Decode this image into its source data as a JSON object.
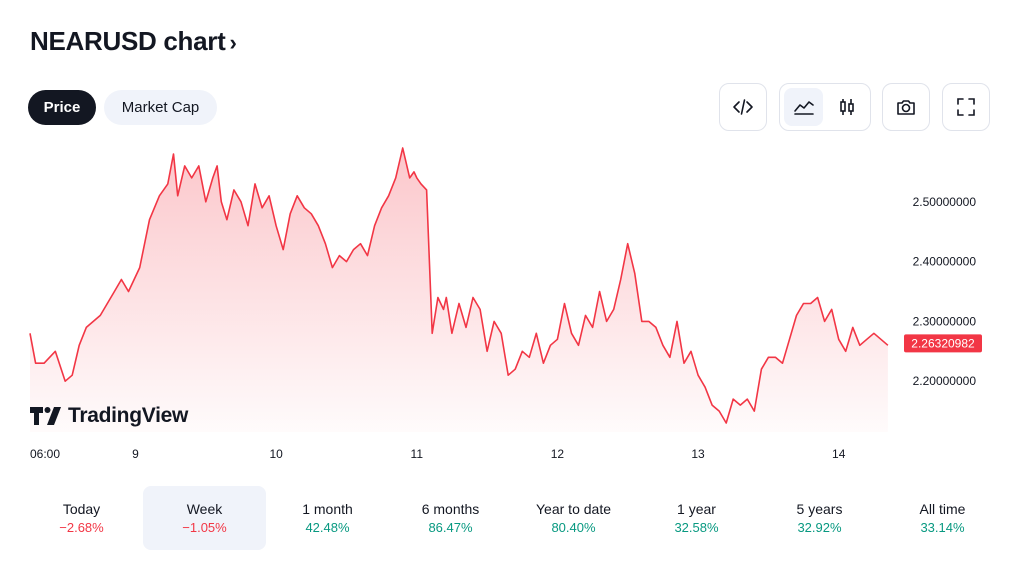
{
  "title": "NEARUSD chart",
  "tabs": [
    {
      "label": "Price",
      "active": true
    },
    {
      "label": "Market Cap",
      "active": false
    }
  ],
  "toolbar": {
    "icons": [
      "embed-code-icon",
      "area-chart-icon",
      "candlestick-icon",
      "camera-icon",
      "fullscreen-icon"
    ],
    "active": "area-chart-icon"
  },
  "branding": {
    "wordmark": "TradingView"
  },
  "colors": {
    "line": "#f23645",
    "positive": "#089981",
    "negative": "#f23645",
    "dark": "#131722",
    "selected_bg": "#f0f3fa"
  },
  "chart_data": {
    "type": "area",
    "symbol": "NEARUSD",
    "current_price": 2.26320982,
    "current_price_label": "2.26320982",
    "ylim": [
      2.115,
      2.59
    ],
    "yticks": [
      {
        "value": 2.5,
        "label": "2.50000000"
      },
      {
        "value": 2.4,
        "label": "2.40000000"
      },
      {
        "value": 2.3,
        "label": "2.30000000"
      },
      {
        "value": 2.2,
        "label": "2.20000000"
      }
    ],
    "xlim": [
      0,
      6.2
    ],
    "xticks": [
      {
        "value": 0,
        "label": "06:00"
      },
      {
        "value": 0.75,
        "label": "9"
      },
      {
        "value": 1.75,
        "label": "10"
      },
      {
        "value": 2.75,
        "label": "11"
      },
      {
        "value": 3.75,
        "label": "12"
      },
      {
        "value": 4.75,
        "label": "13"
      },
      {
        "value": 5.75,
        "label": "14"
      }
    ],
    "series": [
      {
        "x": [
          0.0,
          0.04,
          0.1,
          0.18,
          0.25,
          0.3,
          0.35,
          0.4,
          0.5,
          0.6,
          0.65,
          0.7,
          0.78,
          0.85,
          0.92,
          0.98,
          1.02,
          1.05,
          1.1,
          1.15,
          1.2,
          1.25,
          1.3,
          1.33,
          1.36,
          1.4,
          1.45,
          1.5,
          1.55,
          1.6,
          1.65,
          1.7,
          1.75,
          1.8,
          1.85,
          1.9,
          1.95,
          2.0,
          2.05,
          2.1,
          2.15,
          2.2,
          2.25,
          2.3,
          2.35,
          2.4,
          2.45,
          2.5,
          2.55,
          2.6,
          2.65,
          2.7,
          2.73,
          2.75,
          2.78,
          2.82,
          2.86,
          2.9,
          2.94,
          2.96,
          3.0,
          3.05,
          3.1,
          3.15,
          3.2,
          3.25,
          3.3,
          3.35,
          3.4,
          3.45,
          3.5,
          3.55,
          3.6,
          3.65,
          3.7,
          3.75,
          3.8,
          3.85,
          3.9,
          3.95,
          4.0,
          4.05,
          4.1,
          4.15,
          4.2,
          4.25,
          4.3,
          4.35,
          4.4,
          4.45,
          4.5,
          4.55,
          4.6,
          4.65,
          4.7,
          4.75,
          4.8,
          4.85,
          4.9,
          4.95,
          5.0,
          5.05,
          5.1,
          5.15,
          5.2,
          5.25,
          5.3,
          5.35,
          5.4,
          5.45,
          5.5,
          5.55,
          5.6,
          5.65,
          5.7,
          5.75,
          5.8,
          5.85,
          5.9,
          5.95,
          6.0,
          6.05,
          6.1
        ],
        "values": [
          2.28,
          2.23,
          2.23,
          2.25,
          2.2,
          2.21,
          2.26,
          2.29,
          2.31,
          2.35,
          2.37,
          2.35,
          2.39,
          2.47,
          2.51,
          2.53,
          2.58,
          2.51,
          2.56,
          2.54,
          2.56,
          2.5,
          2.54,
          2.56,
          2.5,
          2.47,
          2.52,
          2.5,
          2.46,
          2.53,
          2.49,
          2.51,
          2.46,
          2.42,
          2.48,
          2.51,
          2.49,
          2.48,
          2.46,
          2.43,
          2.39,
          2.41,
          2.4,
          2.42,
          2.43,
          2.41,
          2.46,
          2.49,
          2.51,
          2.54,
          2.59,
          2.54,
          2.55,
          2.54,
          2.53,
          2.52,
          2.28,
          2.34,
          2.32,
          2.34,
          2.28,
          2.33,
          2.29,
          2.34,
          2.32,
          2.25,
          2.3,
          2.28,
          2.21,
          2.22,
          2.25,
          2.24,
          2.28,
          2.23,
          2.26,
          2.27,
          2.33,
          2.28,
          2.26,
          2.31,
          2.29,
          2.35,
          2.3,
          2.32,
          2.37,
          2.43,
          2.38,
          2.3,
          2.3,
          2.29,
          2.26,
          2.24,
          2.3,
          2.23,
          2.25,
          2.21,
          2.19,
          2.16,
          2.15,
          2.13,
          2.17,
          2.16,
          2.17,
          2.15,
          2.22,
          2.24,
          2.24,
          2.23,
          2.27,
          2.31,
          2.33,
          2.33,
          2.34,
          2.3,
          2.32,
          2.27,
          2.25,
          2.29,
          2.26,
          2.27,
          2.28,
          2.27,
          2.26
        ]
      }
    ]
  },
  "periods": [
    {
      "label": "Today",
      "value": "−2.68%",
      "sign": "neg",
      "active": false
    },
    {
      "label": "Week",
      "value": "−1.05%",
      "sign": "neg",
      "active": true
    },
    {
      "label": "1 month",
      "value": "42.48%",
      "sign": "pos",
      "active": false
    },
    {
      "label": "6 months",
      "value": "86.47%",
      "sign": "pos",
      "active": false
    },
    {
      "label": "Year to date",
      "value": "80.40%",
      "sign": "pos",
      "active": false
    },
    {
      "label": "1 year",
      "value": "32.58%",
      "sign": "pos",
      "active": false
    },
    {
      "label": "5 years",
      "value": "32.92%",
      "sign": "pos",
      "active": false
    },
    {
      "label": "All time",
      "value": "33.14%",
      "sign": "pos",
      "active": false
    }
  ]
}
